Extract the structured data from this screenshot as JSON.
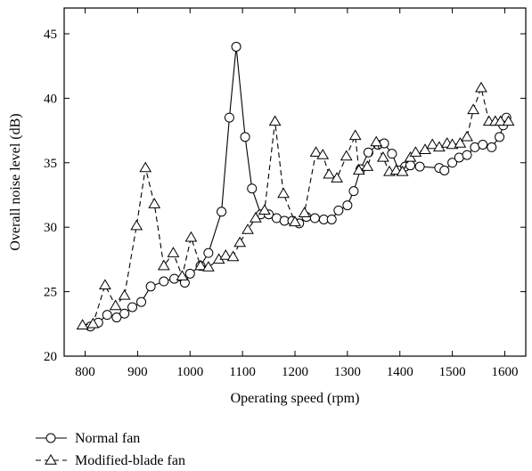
{
  "chart_data": {
    "type": "line",
    "xlabel": "Operating speed (rpm)",
    "ylabel": "Overall noise level (dB)",
    "xlim": [
      760,
      1640
    ],
    "ylim": [
      20,
      47
    ],
    "xticks": [
      800,
      900,
      1000,
      1100,
      1200,
      1300,
      1400,
      1500,
      1600
    ],
    "yticks": [
      20,
      25,
      30,
      35,
      40,
      45
    ],
    "grid": false,
    "legend_position": "bottom-left, below plot",
    "series": [
      {
        "name": "Normal fan",
        "marker": "circle",
        "line_style": "solid",
        "color": "#000000",
        "x": [
          810,
          825,
          842,
          860,
          875,
          890,
          907,
          925,
          950,
          970,
          990,
          1000,
          1020,
          1035,
          1060,
          1075,
          1088,
          1105,
          1118,
          1135,
          1150,
          1165,
          1180,
          1195,
          1208,
          1222,
          1238,
          1255,
          1270,
          1283,
          1300,
          1312,
          1325,
          1340,
          1358,
          1370,
          1385,
          1398,
          1410,
          1420,
          1438,
          1475,
          1485,
          1500,
          1513,
          1528,
          1543,
          1558,
          1575,
          1590,
          1597,
          1603
        ],
        "y": [
          22.3,
          22.6,
          23.2,
          23.0,
          23.3,
          23.8,
          24.2,
          25.4,
          25.8,
          26.0,
          25.7,
          26.4,
          27.0,
          28.0,
          31.2,
          38.5,
          44.0,
          37.0,
          33.0,
          31.0,
          31.0,
          30.7,
          30.5,
          30.5,
          30.3,
          30.8,
          30.7,
          30.6,
          30.6,
          31.3,
          31.7,
          32.8,
          34.5,
          35.8,
          36.4,
          36.5,
          35.7,
          34.4,
          34.7,
          34.8,
          34.7,
          34.6,
          34.4,
          35.0,
          35.4,
          35.6,
          36.2,
          36.4,
          36.2,
          37.0,
          37.9,
          38.5
        ]
      },
      {
        "name": "Modified-blade fan",
        "marker": "triangle",
        "line_style": "dashed",
        "color": "#000000",
        "x": [
          795,
          815,
          838,
          858,
          875,
          898,
          915,
          932,
          950,
          968,
          985,
          1002,
          1020,
          1035,
          1055,
          1068,
          1082,
          1095,
          1110,
          1125,
          1142,
          1162,
          1178,
          1200,
          1218,
          1240,
          1253,
          1265,
          1280,
          1298,
          1315,
          1322,
          1338,
          1355,
          1368,
          1380,
          1393,
          1405,
          1420,
          1430,
          1448,
          1462,
          1475,
          1490,
          1500,
          1515,
          1528,
          1540,
          1555,
          1570,
          1582,
          1592,
          1607
        ],
        "y": [
          22.4,
          22.5,
          25.5,
          23.9,
          24.7,
          30.1,
          34.6,
          31.8,
          27.0,
          28.0,
          26.2,
          29.2,
          27.0,
          26.9,
          27.5,
          27.8,
          27.7,
          28.8,
          29.8,
          30.7,
          31.3,
          38.2,
          32.6,
          30.4,
          31.1,
          35.8,
          35.6,
          34.1,
          33.8,
          35.5,
          37.1,
          34.4,
          34.7,
          36.6,
          35.4,
          34.3,
          34.4,
          34.3,
          35.4,
          35.8,
          36.0,
          36.4,
          36.2,
          36.5,
          36.4,
          36.5,
          37.0,
          39.1,
          40.8,
          38.2,
          38.2,
          38.2,
          38.2
        ]
      }
    ]
  }
}
